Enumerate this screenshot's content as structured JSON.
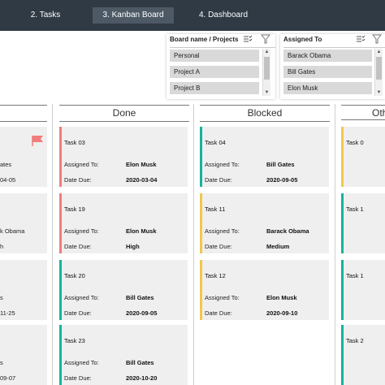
{
  "tabs": [
    {
      "label": "2. Tasks"
    },
    {
      "label": "3. Kanban Board"
    },
    {
      "label": "4. Dashboard"
    }
  ],
  "slicers": {
    "board": {
      "title": "Board name / Projects",
      "items": [
        "Personal",
        "Project A",
        "Project B"
      ]
    },
    "assigned": {
      "title": "Assigned To",
      "items": [
        "Barack Obama",
        "Bill Gates",
        "Elon Musk"
      ]
    }
  },
  "columns": {
    "done": "Done",
    "blocked": "Blocked",
    "other": "Oth"
  },
  "first_column_fragments": [
    {
      "line1": "ates",
      "line2": "04-05"
    },
    {
      "line1": "k Obama",
      "line2": "h"
    },
    {
      "line1": "s",
      "line2": "11-25"
    },
    {
      "line1": "s",
      "line2": "09-07"
    }
  ],
  "labels": {
    "assigned": "Assigned To:",
    "due": "Date Due:"
  },
  "done_cards": [
    {
      "title": "Task 03",
      "assigned": "Elon Musk",
      "due": "2020-03-04",
      "color": "#f07c7c"
    },
    {
      "title": "Task 19",
      "assigned": "Elon Musk",
      "due": "High",
      "color": "#f07c7c"
    },
    {
      "title": "Task 20",
      "assigned": "Bill Gates",
      "due": "2020-09-05",
      "color": "#16b39e"
    },
    {
      "title": "Task 23",
      "assigned": "Bill Gates",
      "due": "2020-10-20",
      "color": "#16b39e"
    }
  ],
  "blocked_cards": [
    {
      "title": "Task 04",
      "assigned": "Bill Gates",
      "due": "2020-09-05",
      "color": "#16b39e"
    },
    {
      "title": "Task 11",
      "assigned": "Barack Obama",
      "due": "Medium",
      "color": "#f1c84b"
    },
    {
      "title": "Task 12",
      "assigned": "Elon Musk",
      "due": "2020-09-10",
      "color": "#f1c84b"
    }
  ],
  "other_cards": [
    {
      "title": "Task 0",
      "color": "#f1c84b"
    },
    {
      "title": "Task 1",
      "color": "#16b39e"
    },
    {
      "title": "Task 1",
      "color": "#16b39e"
    },
    {
      "title": "Task 2",
      "color": "#16b39e"
    }
  ],
  "colors": {
    "nav": "#2f3a44",
    "active_tab": "#4d5965",
    "card": "#efefef",
    "flag": "#f07c7c"
  }
}
